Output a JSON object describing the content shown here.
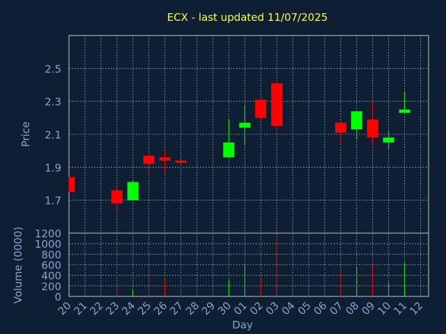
{
  "chart_data": {
    "type": "candlestick",
    "title": "ECX - last updated 11/07/2025",
    "xlabel": "Day",
    "price_panel": {
      "ylabel": "Price",
      "ylim": [
        1.5,
        2.7
      ],
      "yticks": [
        "1.7",
        "1.9",
        "2.1",
        "2.3",
        "2.5"
      ]
    },
    "volume_panel": {
      "ylabel": "Volume (0000)",
      "ylim": [
        0,
        1200
      ],
      "yticks": [
        "0",
        "200",
        "400",
        "600",
        "800",
        "1000",
        "1200"
      ]
    },
    "x_ticks": [
      "20",
      "21",
      "22",
      "23",
      "24",
      "25",
      "26",
      "27",
      "28",
      "29",
      "30",
      "01",
      "02",
      "03",
      "04",
      "05",
      "06",
      "07",
      "08",
      "09",
      "10",
      "11",
      "12"
    ],
    "colors": {
      "up": "#00ff00",
      "down": "#ff0000",
      "title": "#ffff33",
      "axis_text": "#8aa3cc",
      "background": "#0f1f33"
    },
    "candles": [
      {
        "day": "20",
        "open": 1.84,
        "close": 1.75,
        "high": 1.84,
        "low": 1.75,
        "volume": 0
      },
      {
        "day": "23",
        "open": 1.76,
        "close": 1.68,
        "high": 1.76,
        "low": 1.61,
        "volume": 170
      },
      {
        "day": "24",
        "open": 1.7,
        "close": 1.81,
        "high": 1.82,
        "low": 1.7,
        "volume": 120
      },
      {
        "day": "25",
        "open": 1.97,
        "close": 1.92,
        "high": 2.02,
        "low": 1.83,
        "volume": 500
      },
      {
        "day": "26",
        "open": 1.96,
        "close": 1.94,
        "high": 2.01,
        "low": 1.87,
        "volume": 350
      },
      {
        "day": "27",
        "open": 1.94,
        "close": 1.93,
        "high": 1.95,
        "low": 1.87,
        "volume": 200
      },
      {
        "day": "30",
        "open": 1.96,
        "close": 2.05,
        "high": 2.19,
        "low": 1.96,
        "volume": 320
      },
      {
        "day": "01",
        "open": 2.14,
        "close": 2.17,
        "high": 2.28,
        "low": 2.03,
        "volume": 600
      },
      {
        "day": "02",
        "open": 2.31,
        "close": 2.2,
        "high": 2.31,
        "low": 2.18,
        "volume": 350
      },
      {
        "day": "03",
        "open": 2.41,
        "close": 2.15,
        "high": 2.43,
        "low": 2.12,
        "volume": 1100
      },
      {
        "day": "07",
        "open": 2.17,
        "close": 2.11,
        "high": 2.17,
        "low": 2.04,
        "volume": 500
      },
      {
        "day": "08",
        "open": 2.13,
        "close": 2.24,
        "high": 2.24,
        "low": 2.07,
        "volume": 550
      },
      {
        "day": "09",
        "open": 2.19,
        "close": 2.08,
        "high": 2.3,
        "low": 2.03,
        "volume": 580
      },
      {
        "day": "10",
        "open": 2.05,
        "close": 2.08,
        "high": 2.12,
        "low": 2.01,
        "volume": 270
      },
      {
        "day": "11",
        "open": 2.23,
        "close": 2.25,
        "high": 2.36,
        "low": 2.23,
        "volume": 640
      }
    ]
  }
}
